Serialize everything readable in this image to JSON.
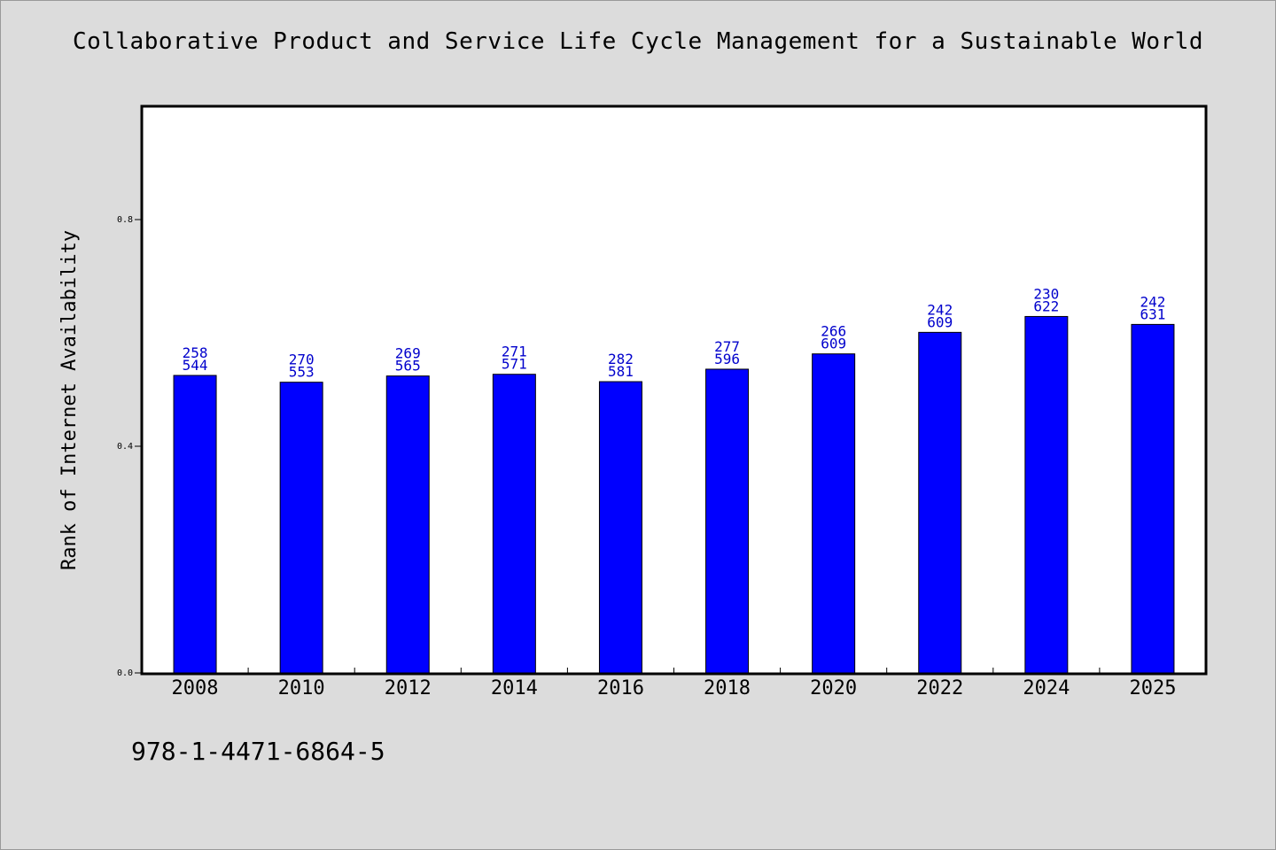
{
  "chart_data": {
    "type": "bar",
    "title": "Collaborative Product and Service Life Cycle Management for a Sustainable World",
    "xlabel": "",
    "ylabel": "Rank of Internet Availability",
    "categories": [
      "2008",
      "2010",
      "2012",
      "2014",
      "2016",
      "2018",
      "2020",
      "2022",
      "2024",
      "2025"
    ],
    "values": [
      0.525,
      0.513,
      0.524,
      0.527,
      0.514,
      0.536,
      0.563,
      0.601,
      0.629,
      0.615
    ],
    "labels_top": [
      "258",
      "270",
      "269",
      "271",
      "282",
      "277",
      "266",
      "242",
      "230",
      "242"
    ],
    "labels_bottom": [
      "544",
      "553",
      "565",
      "571",
      "581",
      "596",
      "609",
      "609",
      "622",
      "631"
    ],
    "yticks": [
      0.0,
      0.4,
      0.8
    ],
    "ytick_labels": [
      "0.0",
      "0.4",
      "0.8"
    ],
    "ylim": [
      0,
      1.0
    ],
    "grid": false,
    "bar_color": "#0000ff",
    "label_color": "#0000cc"
  },
  "footer": {
    "isbn": "978-1-4471-6864-5"
  }
}
